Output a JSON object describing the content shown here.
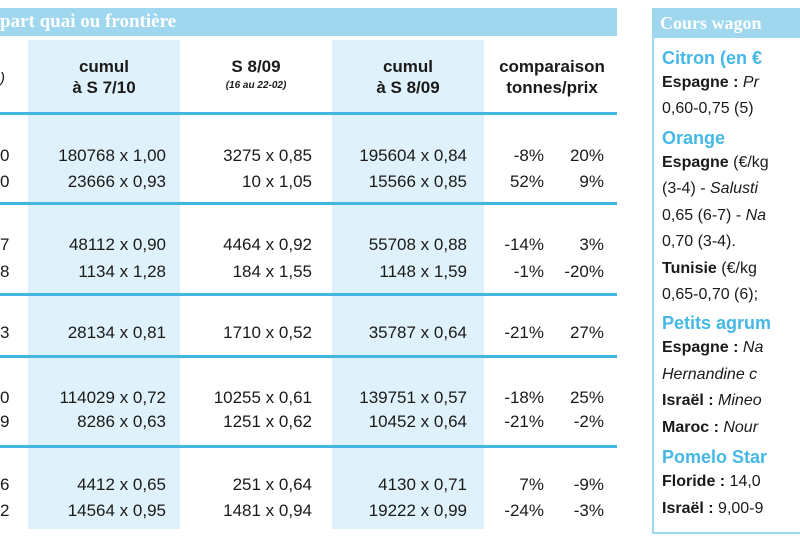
{
  "left_panel": {
    "title": "part quai ou frontière",
    "stub_header": ")",
    "columns": [
      {
        "line1": "cumul",
        "line2": "à S 7/10"
      },
      {
        "line1": "S 8/09",
        "sub": "(16 au 22-02)"
      },
      {
        "line1": "cumul",
        "line2": "à S 8/09"
      },
      {
        "line1": "comparaison",
        "line2": "tonnes/prix"
      }
    ],
    "rows": [
      {
        "lead": "0",
        "c1": "180768 x 1,00",
        "c2": "3275 x 0,85",
        "c3": "195604 x 0,84",
        "pct1": "-8%",
        "pct2": "20%"
      },
      {
        "lead": "0",
        "c1": "23666 x 0,93",
        "c2": "10 x 1,05",
        "c3": "15566 x 0,85",
        "pct1": "52%",
        "pct2": "9%"
      },
      {
        "lead": "7",
        "c1": "48112 x 0,90",
        "c2": "4464 x 0,92",
        "c3": "55708 x 0,88",
        "pct1": "-14%",
        "pct2": "3%"
      },
      {
        "lead": "8",
        "c1": "1134 x 1,28",
        "c2": "184 x 1,55",
        "c3": "1148 x 1,59",
        "pct1": "-1%",
        "pct2": "-20%"
      },
      {
        "lead": "3",
        "c1": "28134 x 0,81",
        "c2": "1710 x 0,52",
        "c3": "35787 x 0,64",
        "pct1": "-21%",
        "pct2": "27%"
      },
      {
        "lead": "0",
        "c1": "114029 x 0,72",
        "c2": "10255 x 0,61",
        "c3": "139751 x 0,57",
        "pct1": "-18%",
        "pct2": "25%"
      },
      {
        "lead": "9",
        "c1": "8286 x 0,63",
        "c2": "1251 x 0,62",
        "c3": "10452 x 0,64",
        "pct1": "-21%",
        "pct2": "-2%"
      },
      {
        "lead": "6",
        "c1": "4412 x 0,65",
        "c2": "251 x 0,64",
        "c3": "4130 x 0,71",
        "pct1": "7%",
        "pct2": "-9%"
      },
      {
        "lead": "2",
        "c1": "14564 x 0,95",
        "c2": "1481 x 0,94",
        "c3": "19222 x 0,99",
        "pct1": "-24%",
        "pct2": "-3%"
      }
    ]
  },
  "right_panel": {
    "title": "Cours wagon",
    "lines": [
      {
        "type": "cat",
        "text": "Citron (en €"
      },
      {
        "type": "text",
        "bold": "Espagne :",
        "italic": " Pr"
      },
      {
        "type": "text",
        "plain": "0,60-0,75 (5)"
      },
      {
        "type": "cat",
        "text": "Orange"
      },
      {
        "type": "text",
        "bold": "Espagne",
        "plain": " (€/kg"
      },
      {
        "type": "text",
        "plain": "(3-4) - ",
        "italic": "Salusti"
      },
      {
        "type": "text",
        "plain": "0,65 (6-7) - ",
        "italic": "Na"
      },
      {
        "type": "text",
        "plain": "0,70 (3-4)."
      },
      {
        "type": "text",
        "bold": "Tunisie",
        "plain": " (€/kg"
      },
      {
        "type": "text",
        "plain": "0,65-0,70 (6);"
      },
      {
        "type": "cat",
        "text": "Petits agrum"
      },
      {
        "type": "text",
        "bold": "Espagne :",
        "italic": " Na"
      },
      {
        "type": "text",
        "italic": "Hernandine c"
      },
      {
        "type": "text",
        "bold": "Israël :",
        "italic": " Mineo"
      },
      {
        "type": "text",
        "bold": "Maroc :",
        "italic": " Nour"
      },
      {
        "type": "cat",
        "text": "Pomelo Star"
      },
      {
        "type": "text",
        "bold": "Floride :",
        "plain": " 14,0"
      },
      {
        "type": "text",
        "bold": "Israël :",
        "plain": " 9,00-9"
      }
    ]
  }
}
